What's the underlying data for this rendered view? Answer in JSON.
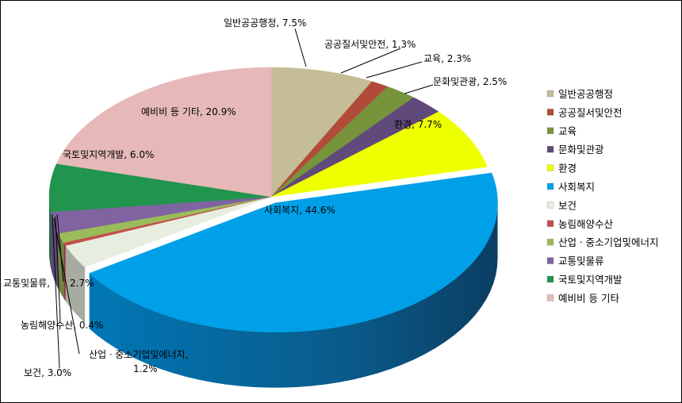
{
  "chart_data": {
    "type": "pie",
    "style": "3d-exploded-top-slice",
    "legend_position": "right",
    "slices": [
      {
        "name": "일반공공행정",
        "value": 7.5,
        "label": "일반공공행정, 7.5%",
        "color": "#C4BD97"
      },
      {
        "name": "공공질서및안전",
        "value": 1.3,
        "label": "공공질서및안전, 1.3%",
        "color": "#B24A3A"
      },
      {
        "name": "교육",
        "value": 2.3,
        "label": "교육, 2.3%",
        "color": "#77933C"
      },
      {
        "name": "문화및관광",
        "value": 2.5,
        "label": "문화및관광, 2.5%",
        "color": "#604A7B"
      },
      {
        "name": "환경",
        "value": 7.7,
        "label": "환경, 7.7%",
        "color": "#EEFF00"
      },
      {
        "name": "사회복지",
        "value": 44.6,
        "label": "사회복지, 44.6%",
        "color": "#00A0E8"
      },
      {
        "name": "보건",
        "value": 3.0,
        "label": "보건, 3.0%",
        "color": "#E8EEDF"
      },
      {
        "name": "농림해양수산",
        "value": 0.4,
        "label": "농림해양수산, 0.4%",
        "color": "#C0504D"
      },
      {
        "name": "산업ㆍ중소기업및에너지",
        "value": 1.2,
        "label_line1": "산업ㆍ중소기업및에너지,",
        "label_line2": "1.2%",
        "color": "#9BBB59"
      },
      {
        "name": "교통및물류",
        "value": 2.7,
        "label_part1": "교통및물류,",
        "label_part2": "2.7%",
        "color": "#8064A2"
      },
      {
        "name": "국토및지역개발",
        "value": 6.0,
        "label": "국토및지역개발, 6.0%",
        "color": "#21944E"
      },
      {
        "name": "예비비 등 기타",
        "value": 20.9,
        "label": "예비비 등 기타, 20.9%",
        "color": "#E6B9B8"
      }
    ]
  },
  "legend": [
    "일반공공행정",
    "공공질서및안전",
    "교육",
    "문화및관광",
    "환경",
    "사회복지",
    "보건",
    "농림해양수산",
    "산업ㆍ중소기업및에너지",
    "교통및물류",
    "국토및지역개발",
    "예비비 등 기타"
  ]
}
